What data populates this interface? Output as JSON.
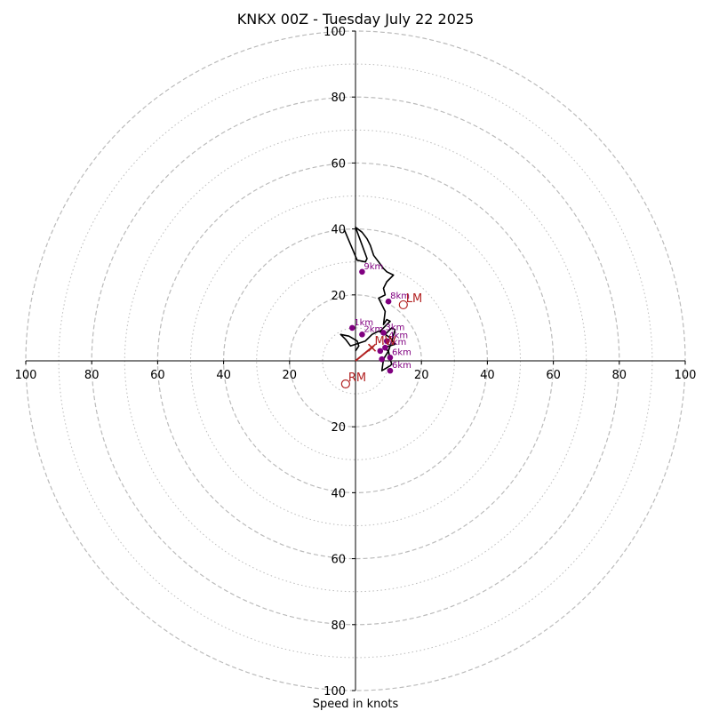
{
  "chart_data": {
    "type": "scatter",
    "subtype": "hodograph",
    "title": "KNKX 00Z - Tuesday July 22 2025",
    "xlabel": "Speed in knots",
    "ylabel": "",
    "xlim": [
      -100,
      100
    ],
    "ylim": [
      -100,
      100
    ],
    "x_ticks": [
      "100",
      "80",
      "60",
      "40",
      "20",
      "20",
      "40",
      "60",
      "80",
      "100"
    ],
    "x_tick_values": [
      -100,
      -80,
      -60,
      -40,
      -20,
      20,
      40,
      60,
      80,
      100
    ],
    "y_ticks": [
      "100",
      "80",
      "60",
      "40",
      "20",
      "20",
      "40",
      "60",
      "80",
      "100"
    ],
    "y_tick_values": [
      100,
      80,
      60,
      40,
      20,
      -20,
      -40,
      -60,
      -80,
      -100
    ],
    "rings_dashed": [
      20,
      40,
      60,
      80,
      100
    ],
    "rings_dotted": [
      10,
      30,
      50,
      70,
      90
    ],
    "grid": true,
    "colors": {
      "hodograph_line": "#000000",
      "height_markers": "#800080",
      "storm_motion": "#b22222",
      "grid": "#bbbbbb"
    },
    "hodograph": {
      "u": [
        0,
        1,
        0.5,
        -2,
        -4.5,
        -3,
        -1.5,
        3,
        5,
        7,
        9,
        11,
        12,
        11,
        10,
        10.5,
        11,
        10.5,
        8,
        8.5,
        10,
        8.5,
        12,
        10.5,
        9,
        7.5,
        10.5,
        9.5,
        8.5,
        9,
        8,
        7,
        9,
        8.5,
        9.5,
        11.5,
        9.5,
        8.5,
        7,
        5.5,
        4.5,
        3.5,
        2,
        0,
        3.5,
        3,
        0.5,
        -3.5
      ],
      "v": [
        3,
        4.5,
        6,
        7.5,
        8,
        6.5,
        4.5,
        6,
        8,
        9,
        8,
        10,
        9.5,
        6,
        3,
        0.5,
        -1,
        -1.5,
        -3,
        0.5,
        3,
        4,
        5,
        7,
        8,
        9,
        12,
        12.5,
        11,
        15,
        17,
        19,
        20,
        22,
        24,
        26,
        27,
        28,
        30,
        32,
        35,
        37,
        39,
        40.5,
        31,
        30,
        30.5,
        40
      ]
    },
    "height_markers": [
      {
        "label": "1km",
        "u": -1,
        "v": 10
      },
      {
        "label": "2km",
        "u": 2,
        "v": 8
      },
      {
        "label": "3km",
        "u": 8.5,
        "v": 8.5
      },
      {
        "label": "4km",
        "u": 9.5,
        "v": 6
      },
      {
        "label": "5km",
        "u": 9,
        "v": 4
      },
      {
        "label": "6km",
        "u": 10.5,
        "v": 1
      },
      {
        "label": "6km",
        "u": 10.5,
        "v": -3
      },
      {
        "label": "",
        "u": 7.5,
        "v": 3
      },
      {
        "label": "",
        "u": 8,
        "v": 0.5
      },
      {
        "label": "8km",
        "u": 10,
        "v": 18
      },
      {
        "label": "9km",
        "u": 2,
        "v": 27
      }
    ],
    "storm_motion": [
      {
        "label": "LM",
        "u": 14.5,
        "v": 17
      },
      {
        "label": "RM",
        "u": -3,
        "v": -7
      }
    ],
    "mean_wind": {
      "label": "MW",
      "u": 5,
      "v": 4
    },
    "mean_wind_line": {
      "u": [
        0,
        5.5
      ],
      "v": [
        0,
        4.5
      ]
    }
  }
}
